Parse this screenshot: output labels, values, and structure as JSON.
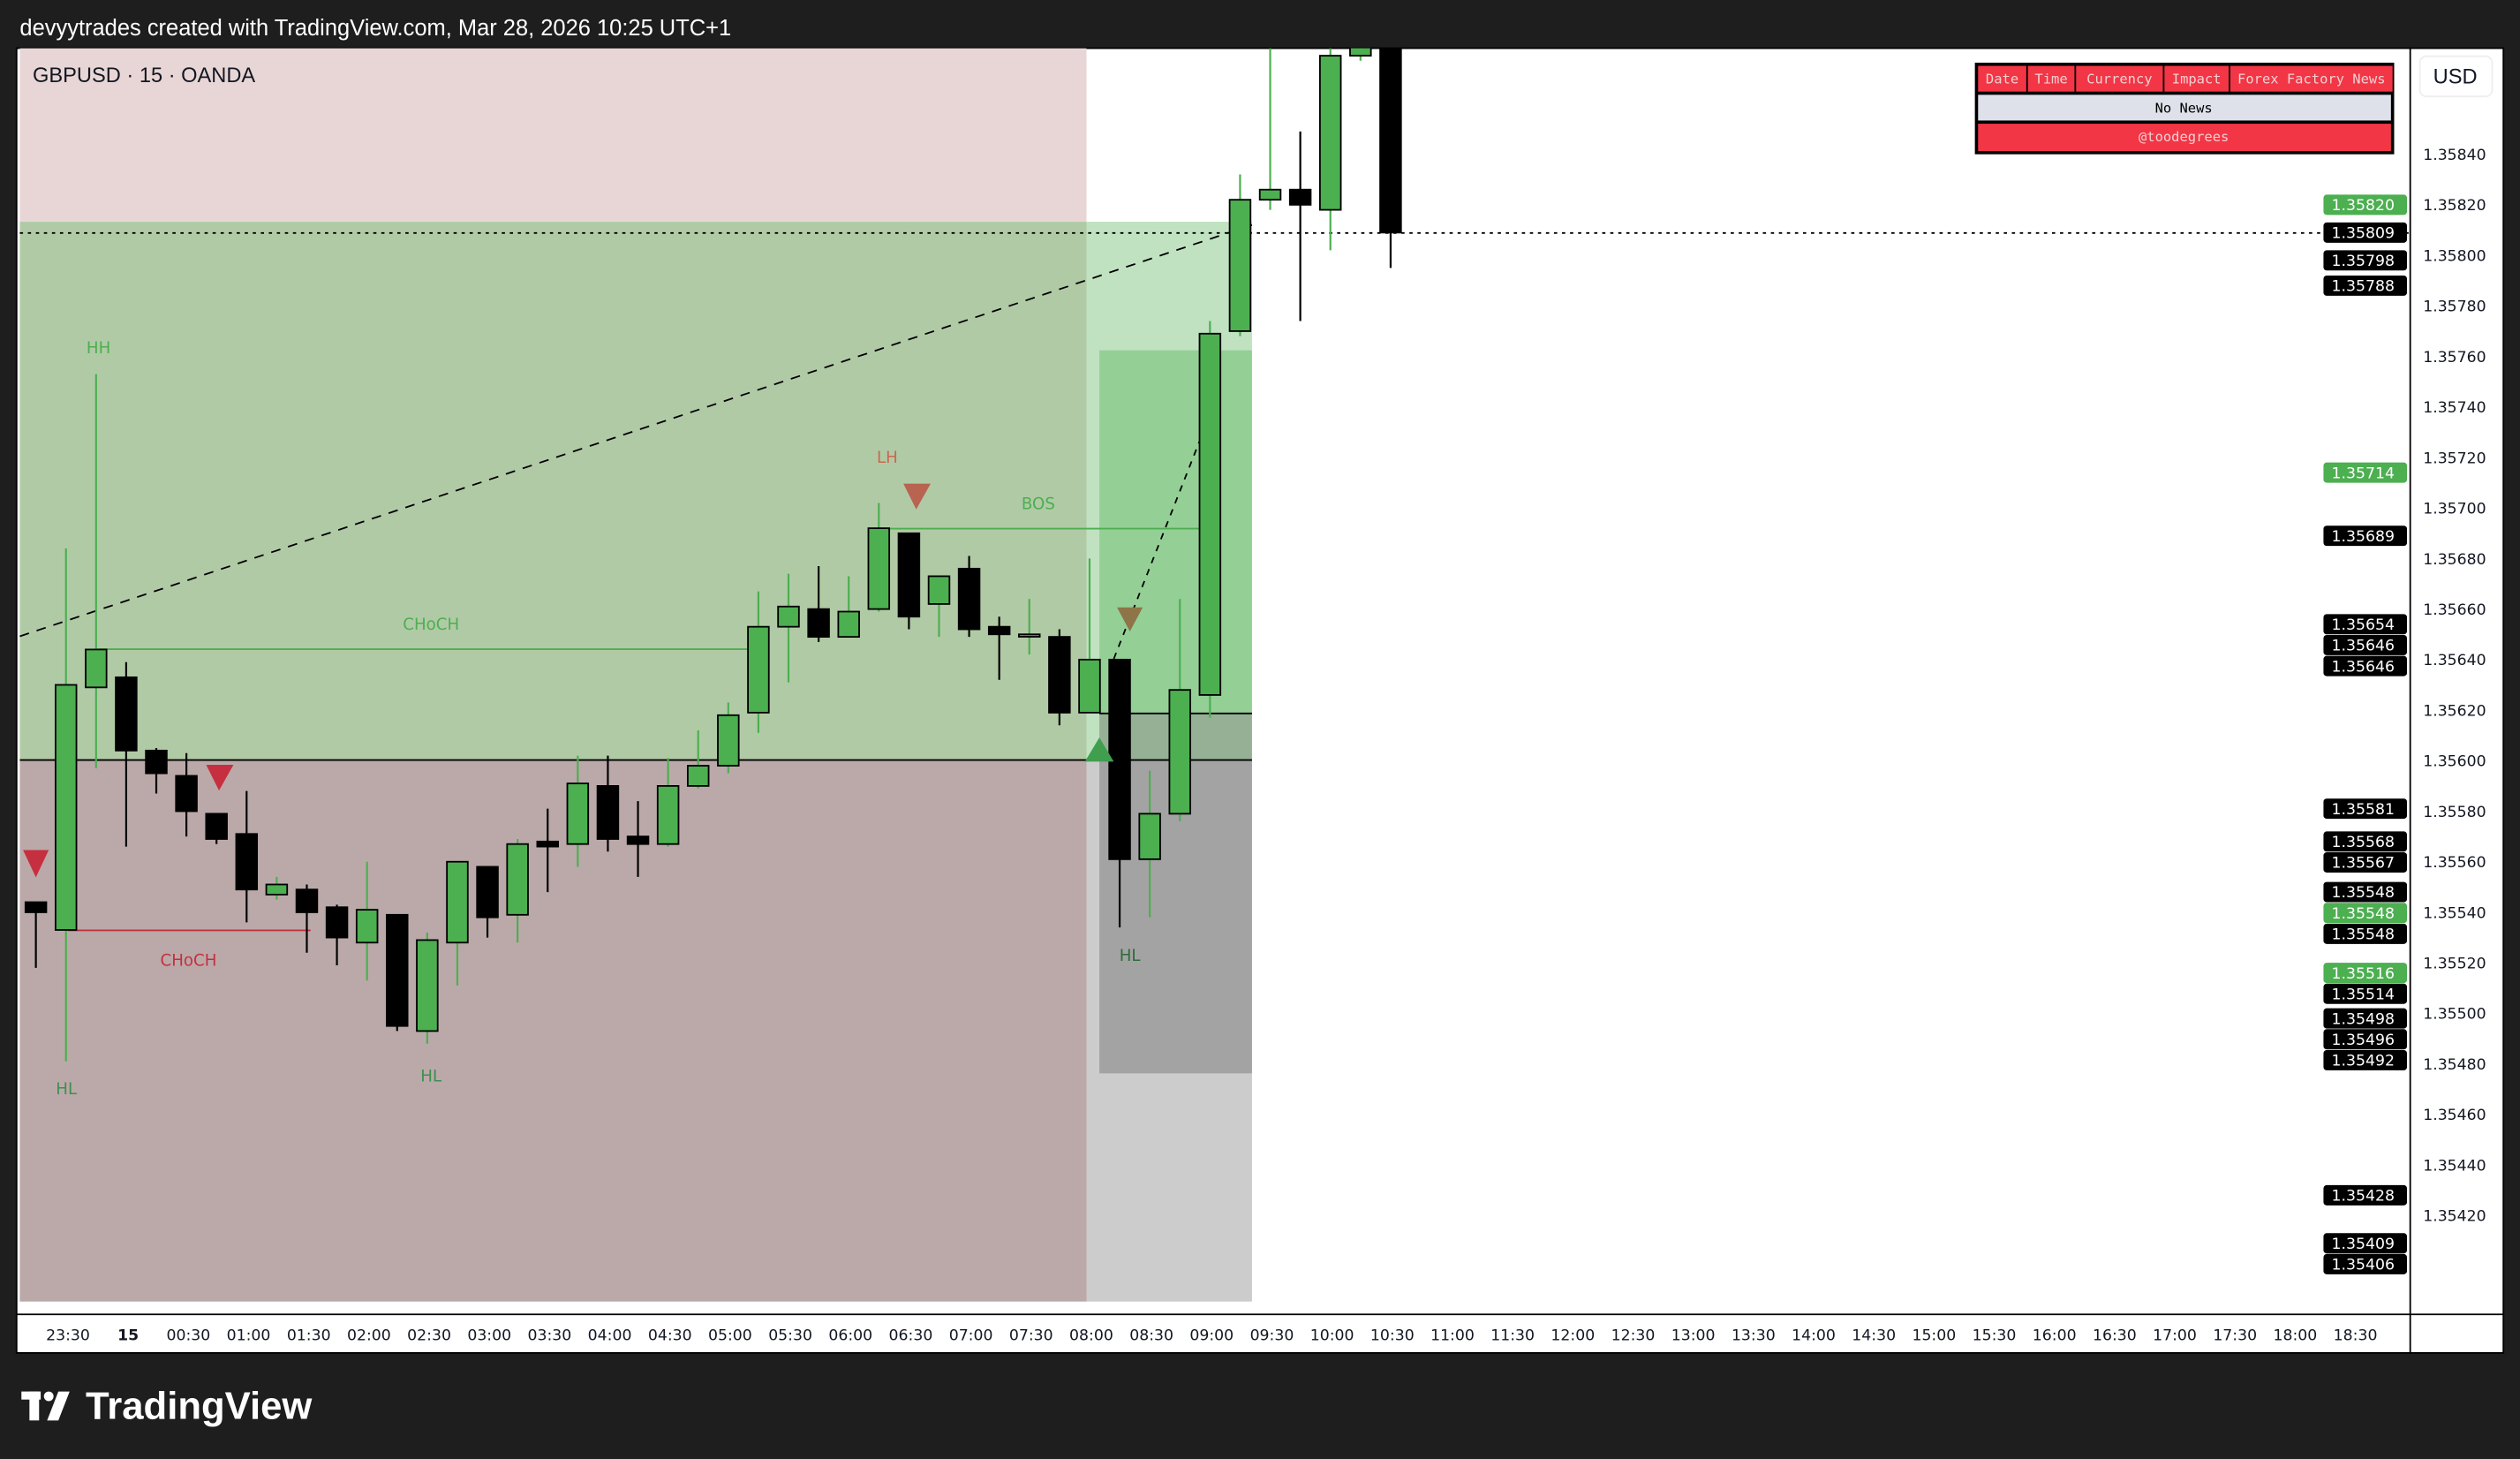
{
  "header": {
    "caption": "devyytrades created with TradingView.com, Mar 28, 2026 10:25 UTC+1"
  },
  "chart": {
    "symbol_legend": "GBPUSD · 15 · OANDA",
    "currency_button": "USD"
  },
  "news_table": {
    "headers": [
      "Date",
      "Time",
      "Currency",
      "Impact",
      "Forex Factory News"
    ],
    "body": "No News",
    "footer": "@toodegrees",
    "colors": {
      "header": "#f23645",
      "body": "#dee1ea"
    }
  },
  "annotations": {
    "hh": "HH",
    "hl_1": "HL",
    "hl_2": "HL",
    "hl_3": "HL",
    "choch_bull": "CHoCH",
    "choch_bear": "CHoCH",
    "lh": "LH",
    "bos": "BOS"
  },
  "footer": {
    "brand": "TradingView"
  },
  "colors": {
    "bull": "#4caf50",
    "bear": "#000000",
    "bear_marker": "#c62f3f",
    "lh_marker": "#b86450"
  },
  "chart_data": {
    "type": "candlestick",
    "symbol": "GBPUSD",
    "interval": "15",
    "ylim": [
      1.354,
      1.35885
    ],
    "candles": [
      {
        "t": "23:15",
        "o": 1.35544,
        "h": 1.35544,
        "l": 1.35518,
        "c": 1.3554
      },
      {
        "t": "23:30",
        "o": 1.35533,
        "h": 1.35684,
        "l": 1.35481,
        "c": 1.3563
      },
      {
        "t": "23:45",
        "o": 1.35629,
        "h": 1.35753,
        "l": 1.35597,
        "c": 1.35644
      },
      {
        "t": "00:00",
        "o": 1.35633,
        "h": 1.35639,
        "l": 1.35566,
        "c": 1.35604
      },
      {
        "t": "00:15",
        "o": 1.35604,
        "h": 1.35605,
        "l": 1.35587,
        "c": 1.35595
      },
      {
        "t": "00:30",
        "o": 1.35594,
        "h": 1.35603,
        "l": 1.3557,
        "c": 1.3558
      },
      {
        "t": "00:45",
        "o": 1.35579,
        "h": 1.35579,
        "l": 1.35567,
        "c": 1.35569
      },
      {
        "t": "01:00",
        "o": 1.35571,
        "h": 1.35588,
        "l": 1.35536,
        "c": 1.35549
      },
      {
        "t": "01:15",
        "o": 1.35547,
        "h": 1.35554,
        "l": 1.35545,
        "c": 1.35551
      },
      {
        "t": "01:30",
        "o": 1.35549,
        "h": 1.35551,
        "l": 1.35524,
        "c": 1.3554
      },
      {
        "t": "01:45",
        "o": 1.35542,
        "h": 1.35543,
        "l": 1.35519,
        "c": 1.3553
      },
      {
        "t": "02:00",
        "o": 1.35528,
        "h": 1.3556,
        "l": 1.35513,
        "c": 1.35541
      },
      {
        "t": "02:15",
        "o": 1.35539,
        "h": 1.35539,
        "l": 1.35493,
        "c": 1.35495
      },
      {
        "t": "02:30",
        "o": 1.35493,
        "h": 1.35532,
        "l": 1.35488,
        "c": 1.35529
      },
      {
        "t": "02:45",
        "o": 1.35528,
        "h": 1.3556,
        "l": 1.35511,
        "c": 1.3556
      },
      {
        "t": "03:00",
        "o": 1.35558,
        "h": 1.35558,
        "l": 1.3553,
        "c": 1.35538
      },
      {
        "t": "03:15",
        "o": 1.35539,
        "h": 1.35569,
        "l": 1.35528,
        "c": 1.35567
      },
      {
        "t": "03:30",
        "o": 1.35568,
        "h": 1.35581,
        "l": 1.35548,
        "c": 1.35566
      },
      {
        "t": "03:45",
        "o": 1.35567,
        "h": 1.35602,
        "l": 1.35558,
        "c": 1.35591
      },
      {
        "t": "04:00",
        "o": 1.3559,
        "h": 1.35602,
        "l": 1.35564,
        "c": 1.35569
      },
      {
        "t": "04:15",
        "o": 1.3557,
        "h": 1.35584,
        "l": 1.35554,
        "c": 1.35567
      },
      {
        "t": "04:30",
        "o": 1.35567,
        "h": 1.35601,
        "l": 1.35566,
        "c": 1.3559
      },
      {
        "t": "04:45",
        "o": 1.3559,
        "h": 1.35612,
        "l": 1.35589,
        "c": 1.35598
      },
      {
        "t": "05:00",
        "o": 1.35598,
        "h": 1.35623,
        "l": 1.35595,
        "c": 1.35618
      },
      {
        "t": "05:15",
        "o": 1.35619,
        "h": 1.35667,
        "l": 1.35611,
        "c": 1.35653
      },
      {
        "t": "05:30",
        "o": 1.35653,
        "h": 1.35674,
        "l": 1.35631,
        "c": 1.35661
      },
      {
        "t": "05:45",
        "o": 1.3566,
        "h": 1.35677,
        "l": 1.35647,
        "c": 1.35649
      },
      {
        "t": "06:00",
        "o": 1.35649,
        "h": 1.35673,
        "l": 1.35649,
        "c": 1.35659
      },
      {
        "t": "06:15",
        "o": 1.3566,
        "h": 1.35702,
        "l": 1.35659,
        "c": 1.35692
      },
      {
        "t": "06:30",
        "o": 1.3569,
        "h": 1.3569,
        "l": 1.35652,
        "c": 1.35657
      },
      {
        "t": "06:45",
        "o": 1.35662,
        "h": 1.35673,
        "l": 1.35649,
        "c": 1.35673
      },
      {
        "t": "07:00",
        "o": 1.35676,
        "h": 1.35681,
        "l": 1.35649,
        "c": 1.35652
      },
      {
        "t": "07:15",
        "o": 1.35653,
        "h": 1.35657,
        "l": 1.35632,
        "c": 1.3565
      },
      {
        "t": "07:30",
        "o": 1.3565,
        "h": 1.35664,
        "l": 1.35642,
        "c": 1.3565
      },
      {
        "t": "07:45",
        "o": 1.35649,
        "h": 1.35652,
        "l": 1.35614,
        "c": 1.35619
      },
      {
        "t": "08:00",
        "o": 1.35619,
        "h": 1.3568,
        "l": 1.35619,
        "c": 1.3564
      },
      {
        "t": "08:15",
        "o": 1.3564,
        "h": 1.3564,
        "l": 1.35534,
        "c": 1.35561
      },
      {
        "t": "08:30",
        "o": 1.35561,
        "h": 1.35596,
        "l": 1.35538,
        "c": 1.35579
      },
      {
        "t": "08:45",
        "o": 1.35579,
        "h": 1.35664,
        "l": 1.35576,
        "c": 1.35628
      },
      {
        "t": "09:00",
        "o": 1.35626,
        "h": 1.35774,
        "l": 1.35617,
        "c": 1.35769
      },
      {
        "t": "09:15",
        "o": 1.3577,
        "h": 1.35832,
        "l": 1.35768,
        "c": 1.35822
      },
      {
        "t": "09:30",
        "o": 1.35822,
        "h": 1.35882,
        "l": 1.35818,
        "c": 1.35826
      },
      {
        "t": "09:45",
        "o": 1.35826,
        "h": 1.35849,
        "l": 1.35774,
        "c": 1.3582
      },
      {
        "t": "10:00",
        "o": 1.35818,
        "h": 1.35882,
        "l": 1.35802,
        "c": 1.35879
      },
      {
        "t": "10:15",
        "o": 1.35879,
        "h": 1.35885,
        "l": 1.35877,
        "c": 1.35883
      },
      {
        "t": "10:30",
        "o": 1.35882,
        "h": 1.35885,
        "l": 1.35795,
        "c": 1.35809
      }
    ],
    "y_ticks": [
      "1.35420",
      "1.35440",
      "1.35460",
      "1.35480",
      "1.35500",
      "1.35520",
      "1.35540",
      "1.35560",
      "1.35580",
      "1.35600",
      "1.35620",
      "1.35640",
      "1.35660",
      "1.35680",
      "1.35700",
      "1.35720",
      "1.35740",
      "1.35760",
      "1.35780",
      "1.35800",
      "1.35820",
      "1.35840"
    ],
    "price_tags": [
      {
        "v": "1.35820",
        "color": "#4caf50"
      },
      {
        "v": "1.35809",
        "color": "#000000"
      },
      {
        "v": "1.35798",
        "color": "#000000"
      },
      {
        "v": "1.35788",
        "color": "#000000"
      },
      {
        "v": "1.35714",
        "color": "#4caf50"
      },
      {
        "v": "1.35689",
        "color": "#000000"
      },
      {
        "v": "1.35654",
        "color": "#000000"
      },
      {
        "v": "1.35646",
        "color": "#000000"
      },
      {
        "v": "1.35646",
        "color": "#000000"
      },
      {
        "v": "1.35581",
        "color": "#000000"
      },
      {
        "v": "1.35568",
        "color": "#000000"
      },
      {
        "v": "1.35567",
        "color": "#000000"
      },
      {
        "v": "1.35548",
        "color": "#000000"
      },
      {
        "v": "1.35548",
        "color": "#4caf50"
      },
      {
        "v": "1.35548",
        "color": "#000000"
      },
      {
        "v": "1.35516",
        "color": "#4caf50"
      },
      {
        "v": "1.35514",
        "color": "#000000"
      },
      {
        "v": "1.35498",
        "color": "#000000"
      },
      {
        "v": "1.35496",
        "color": "#000000"
      },
      {
        "v": "1.35492",
        "color": "#000000"
      },
      {
        "v": "1.35428",
        "color": "#000000"
      },
      {
        "v": "1.35409",
        "color": "#000000"
      },
      {
        "v": "1.35406",
        "color": "#000000"
      }
    ],
    "x_ticks": [
      "23:30",
      "15",
      "00:30",
      "01:00",
      "01:30",
      "02:00",
      "02:30",
      "03:00",
      "03:30",
      "04:00",
      "04:30",
      "05:00",
      "05:30",
      "06:00",
      "06:30",
      "07:00",
      "07:30",
      "08:00",
      "08:30",
      "09:00",
      "09:30",
      "10:00",
      "10:30",
      "11:00",
      "11:30",
      "12:00",
      "12:30",
      "13:00",
      "13:30",
      "14:00",
      "14:30",
      "15:00",
      "15:30",
      "16:00",
      "16:30",
      "17:00",
      "17:30",
      "18:00",
      "18:30"
    ]
  }
}
